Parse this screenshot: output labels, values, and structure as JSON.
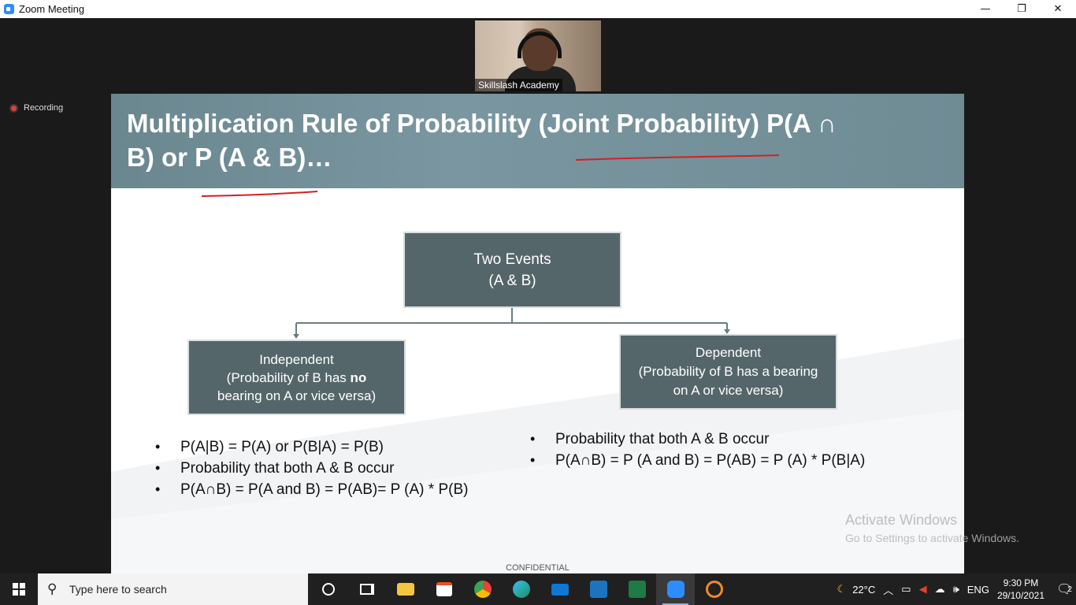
{
  "window": {
    "title": "Zoom Meeting",
    "minimize": "—",
    "restore": "❐",
    "close": "✕"
  },
  "video": {
    "participant_name": "Skillslash Academy"
  },
  "recording": {
    "label": "Recording"
  },
  "slide": {
    "title_line1": "Multiplication Rule of Probability (Joint Probability) P(A ∩",
    "title_line2": "B) or P (A & B)…",
    "top_box": {
      "line1": "Two Events",
      "line2": "(A & B)"
    },
    "left_box": {
      "line1": "Independent",
      "line2": "(Probability of B has ",
      "line2_bold": "no",
      "line3": "bearing on A or vice versa)"
    },
    "right_box": {
      "line1": "Dependent",
      "line2": "(Probability of B has a bearing",
      "line3": "on A or vice versa)"
    },
    "left_bullets": [
      "P(A|B) = P(A) or P(B|A) = P(B)",
      "Probability that both A & B occur",
      "P(A∩B) = P(A and B) = P(AB)= P (A) * P(B)"
    ],
    "right_bullets": [
      "Probability that both A & B occur",
      "P(A∩B) = P (A and B) = P(AB) = P (A) * P(B|A)"
    ],
    "footer": "CONFIDENTIAL"
  },
  "watermark": {
    "line1": "Activate Windows",
    "line2": "Go to Settings to activate Windows."
  },
  "taskbar": {
    "search_placeholder": "Type here to search",
    "weather": "22°C",
    "language": "ENG",
    "time": "9:30 PM",
    "date": "29/10/2021",
    "notification_count": "2"
  },
  "colors": {
    "header": "#6f8c95",
    "box": "#55666a",
    "annotation": "#d42020"
  }
}
